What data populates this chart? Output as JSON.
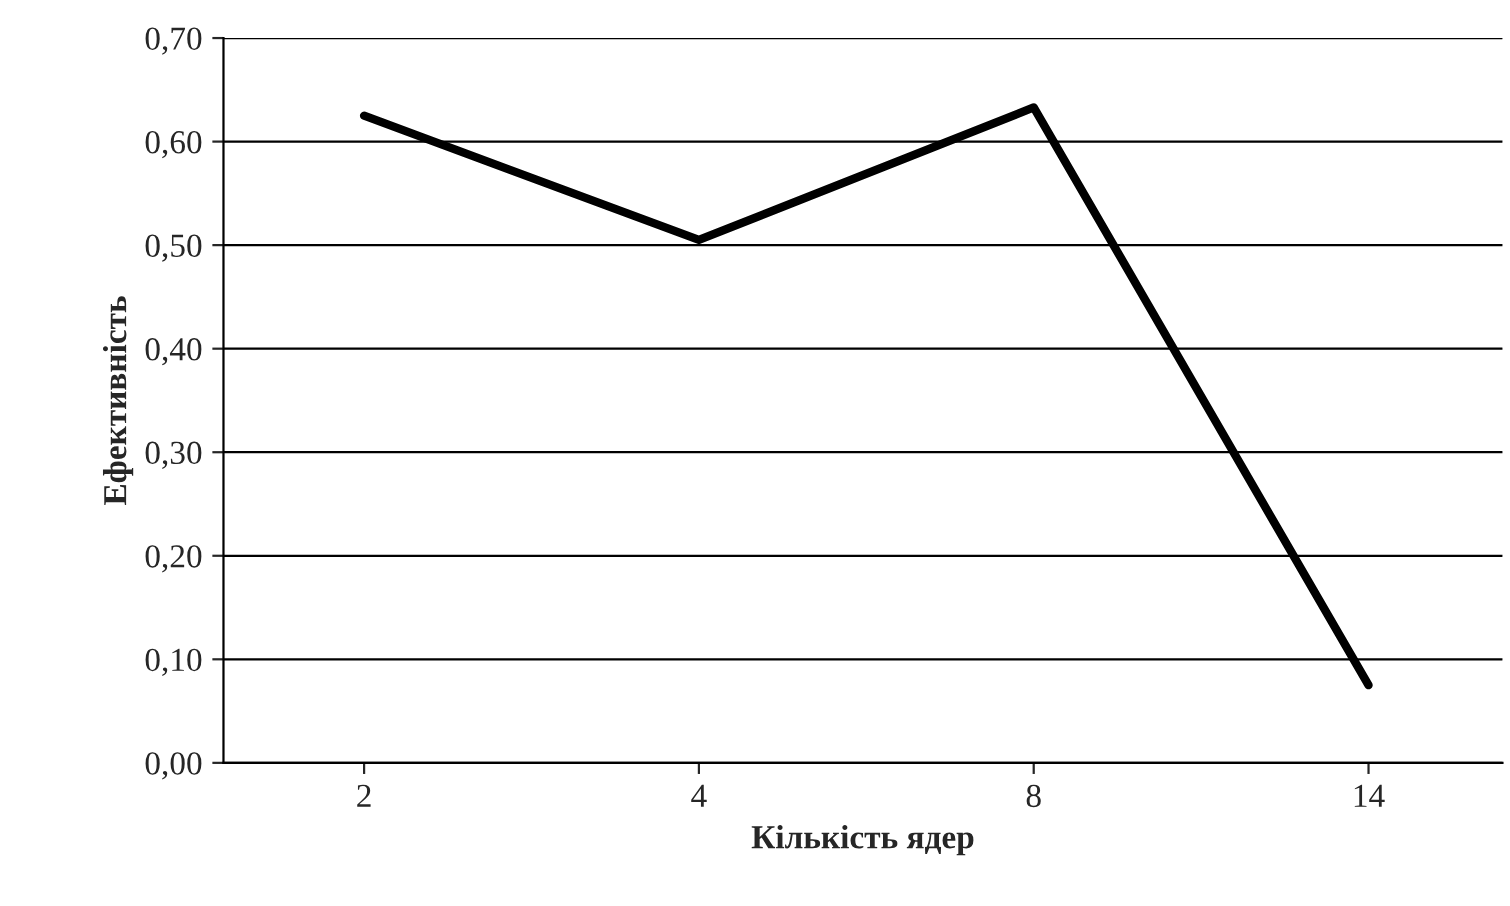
{
  "chart_data": {
    "type": "line",
    "xlabel": "Кількість ядер",
    "ylabel": "Ефективність",
    "categories": [
      "2",
      "4",
      "8",
      "14"
    ],
    "series": [
      {
        "color": "#000000",
        "values": [
          0.625,
          0.505,
          0.633,
          0.075
        ]
      }
    ],
    "ylim": [
      0,
      0.7
    ],
    "yticks": [
      {
        "value": 0,
        "label": "0,00"
      },
      {
        "value": 0.1,
        "label": "0,10"
      },
      {
        "value": 0.2,
        "label": "0,20"
      },
      {
        "value": 0.3,
        "label": "0,30"
      },
      {
        "value": 0.4,
        "label": "0,40"
      },
      {
        "value": 0.5,
        "label": "0,50"
      },
      {
        "value": 0.6,
        "label": "0,60"
      },
      {
        "value": 0.7,
        "label": "0,70"
      }
    ],
    "grid": "y",
    "marker": "none",
    "line_style": "solid"
  }
}
